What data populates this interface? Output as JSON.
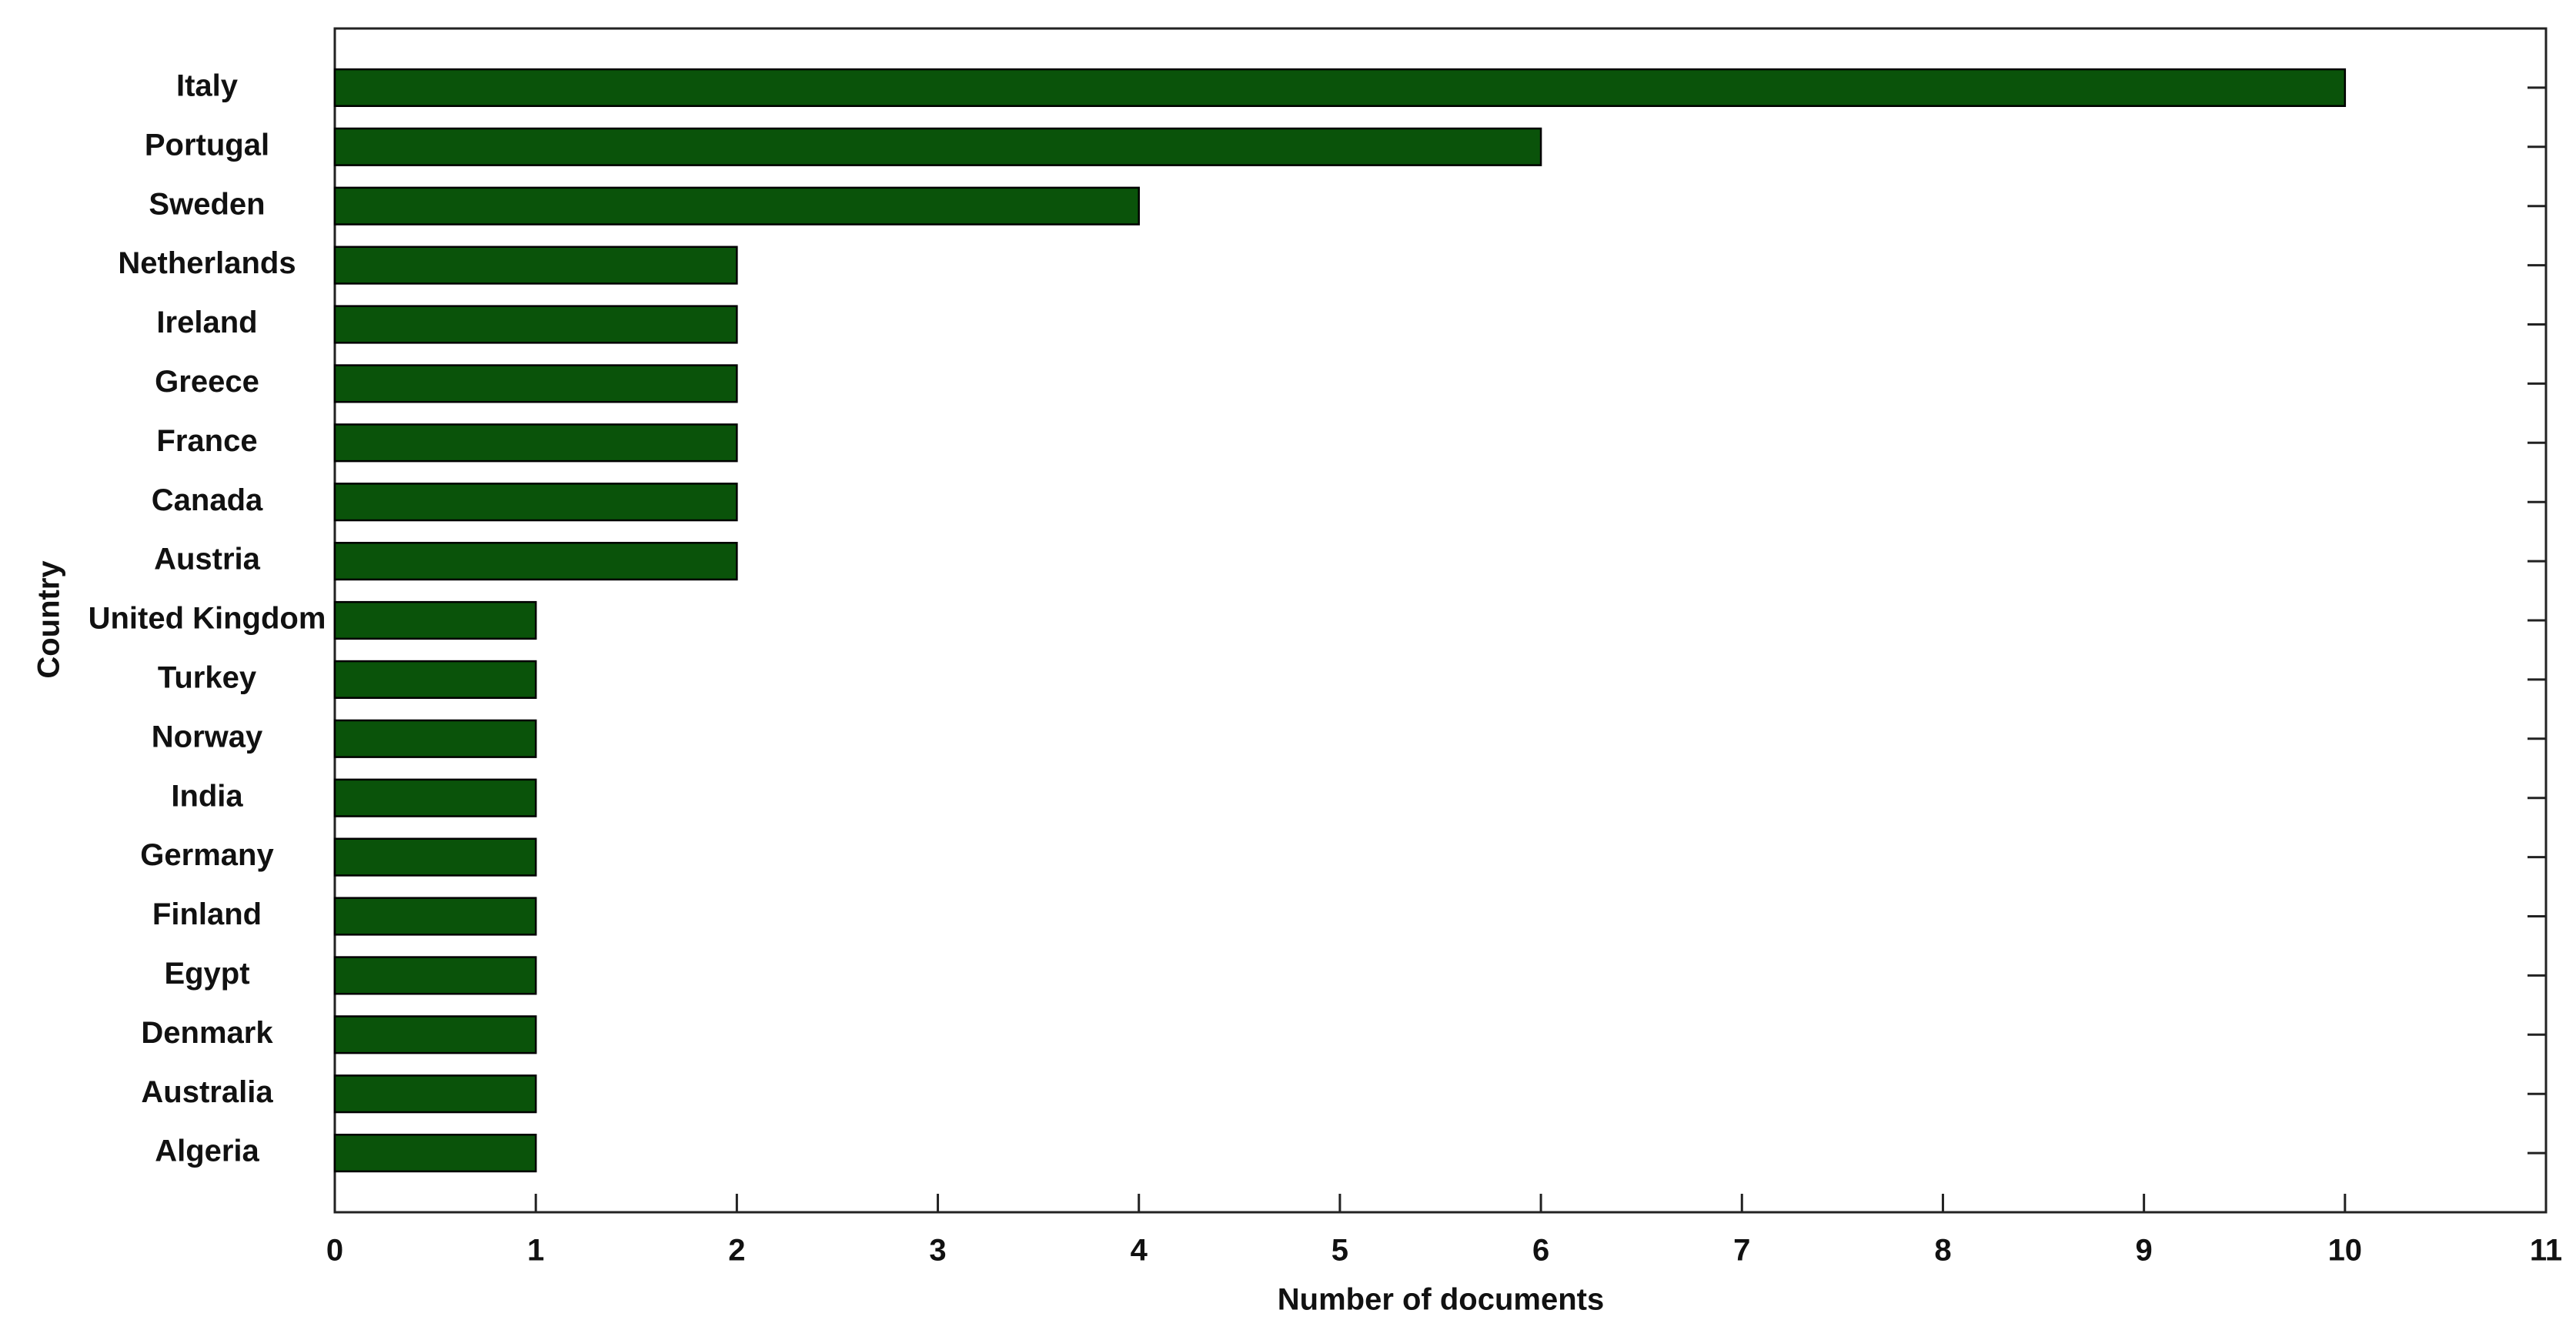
{
  "chart_data": {
    "type": "barh",
    "categories": [
      "Italy",
      "Portugal",
      "Sweden",
      "Netherlands",
      "Ireland",
      "Greece",
      "France",
      "Canada",
      "Austria",
      "United Kingdom",
      "Turkey",
      "Norway",
      "India",
      "Germany",
      "Finland",
      "Egypt",
      "Denmark",
      "Australia",
      "Algeria"
    ],
    "values": [
      10,
      6,
      4,
      2,
      2,
      2,
      2,
      2,
      2,
      1,
      1,
      1,
      1,
      1,
      1,
      1,
      1,
      1,
      1
    ],
    "color": "#0a530a",
    "x_label": "Number of documents",
    "y_label": "Country",
    "xlim": [
      0,
      11
    ],
    "xticks": [
      0,
      1,
      2,
      3,
      4,
      5,
      6,
      7,
      8,
      9,
      10,
      11
    ]
  }
}
